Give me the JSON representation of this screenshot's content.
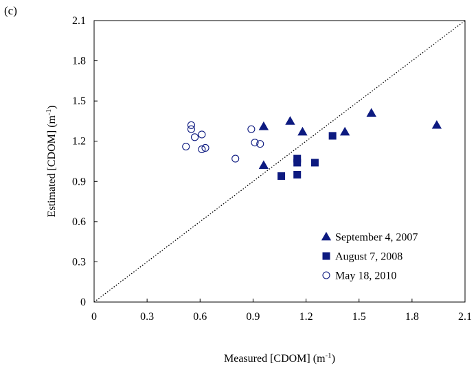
{
  "panel_label": "(c)",
  "colors": {
    "series": "#0d1a80",
    "axis": "#000000",
    "refline": "#000000"
  },
  "chart_data": {
    "type": "scatter",
    "title": "",
    "xlabel": "Measured [CDOM] (m",
    "xlabel_sup": "-1",
    "xlabel_suffix": ")",
    "ylabel": "Estimated [CDOM] (m",
    "ylabel_sup": "-1",
    "ylabel_suffix": ")",
    "xlim": [
      0,
      2.1
    ],
    "ylim": [
      0,
      2.1
    ],
    "xticks": [
      "0",
      "0.3",
      "0.6",
      "0.9",
      "1.2",
      "1.5",
      "1.8",
      "2.1"
    ],
    "yticks": [
      "0",
      "0.3",
      "0.6",
      "0.9",
      "1.2",
      "1.5",
      "1.8",
      "2.1"
    ],
    "reference_line": {
      "style": "dotted",
      "points": [
        [
          0,
          0
        ],
        [
          2.1,
          2.1
        ]
      ]
    },
    "legend_position": "bottom-right",
    "series": [
      {
        "name": "September 4, 2007",
        "marker": "filled-triangle",
        "points": [
          [
            0.96,
            1.31
          ],
          [
            1.11,
            1.35
          ],
          [
            1.18,
            1.27
          ],
          [
            0.96,
            1.02
          ],
          [
            1.42,
            1.27
          ],
          [
            1.57,
            1.41
          ],
          [
            1.94,
            1.32
          ]
        ]
      },
      {
        "name": "August 7, 2008",
        "marker": "filled-square",
        "points": [
          [
            1.06,
            0.94
          ],
          [
            1.15,
            0.95
          ],
          [
            1.15,
            1.04
          ],
          [
            1.15,
            1.07
          ],
          [
            1.25,
            1.04
          ],
          [
            1.35,
            1.24
          ]
        ]
      },
      {
        "name": "May 18, 2010",
        "marker": "open-circle",
        "points": [
          [
            0.52,
            1.16
          ],
          [
            0.55,
            1.32
          ],
          [
            0.55,
            1.29
          ],
          [
            0.57,
            1.23
          ],
          [
            0.61,
            1.25
          ],
          [
            0.61,
            1.14
          ],
          [
            0.63,
            1.15
          ],
          [
            0.8,
            1.07
          ],
          [
            0.89,
            1.29
          ],
          [
            0.91,
            1.19
          ],
          [
            0.94,
            1.18
          ]
        ]
      }
    ]
  }
}
